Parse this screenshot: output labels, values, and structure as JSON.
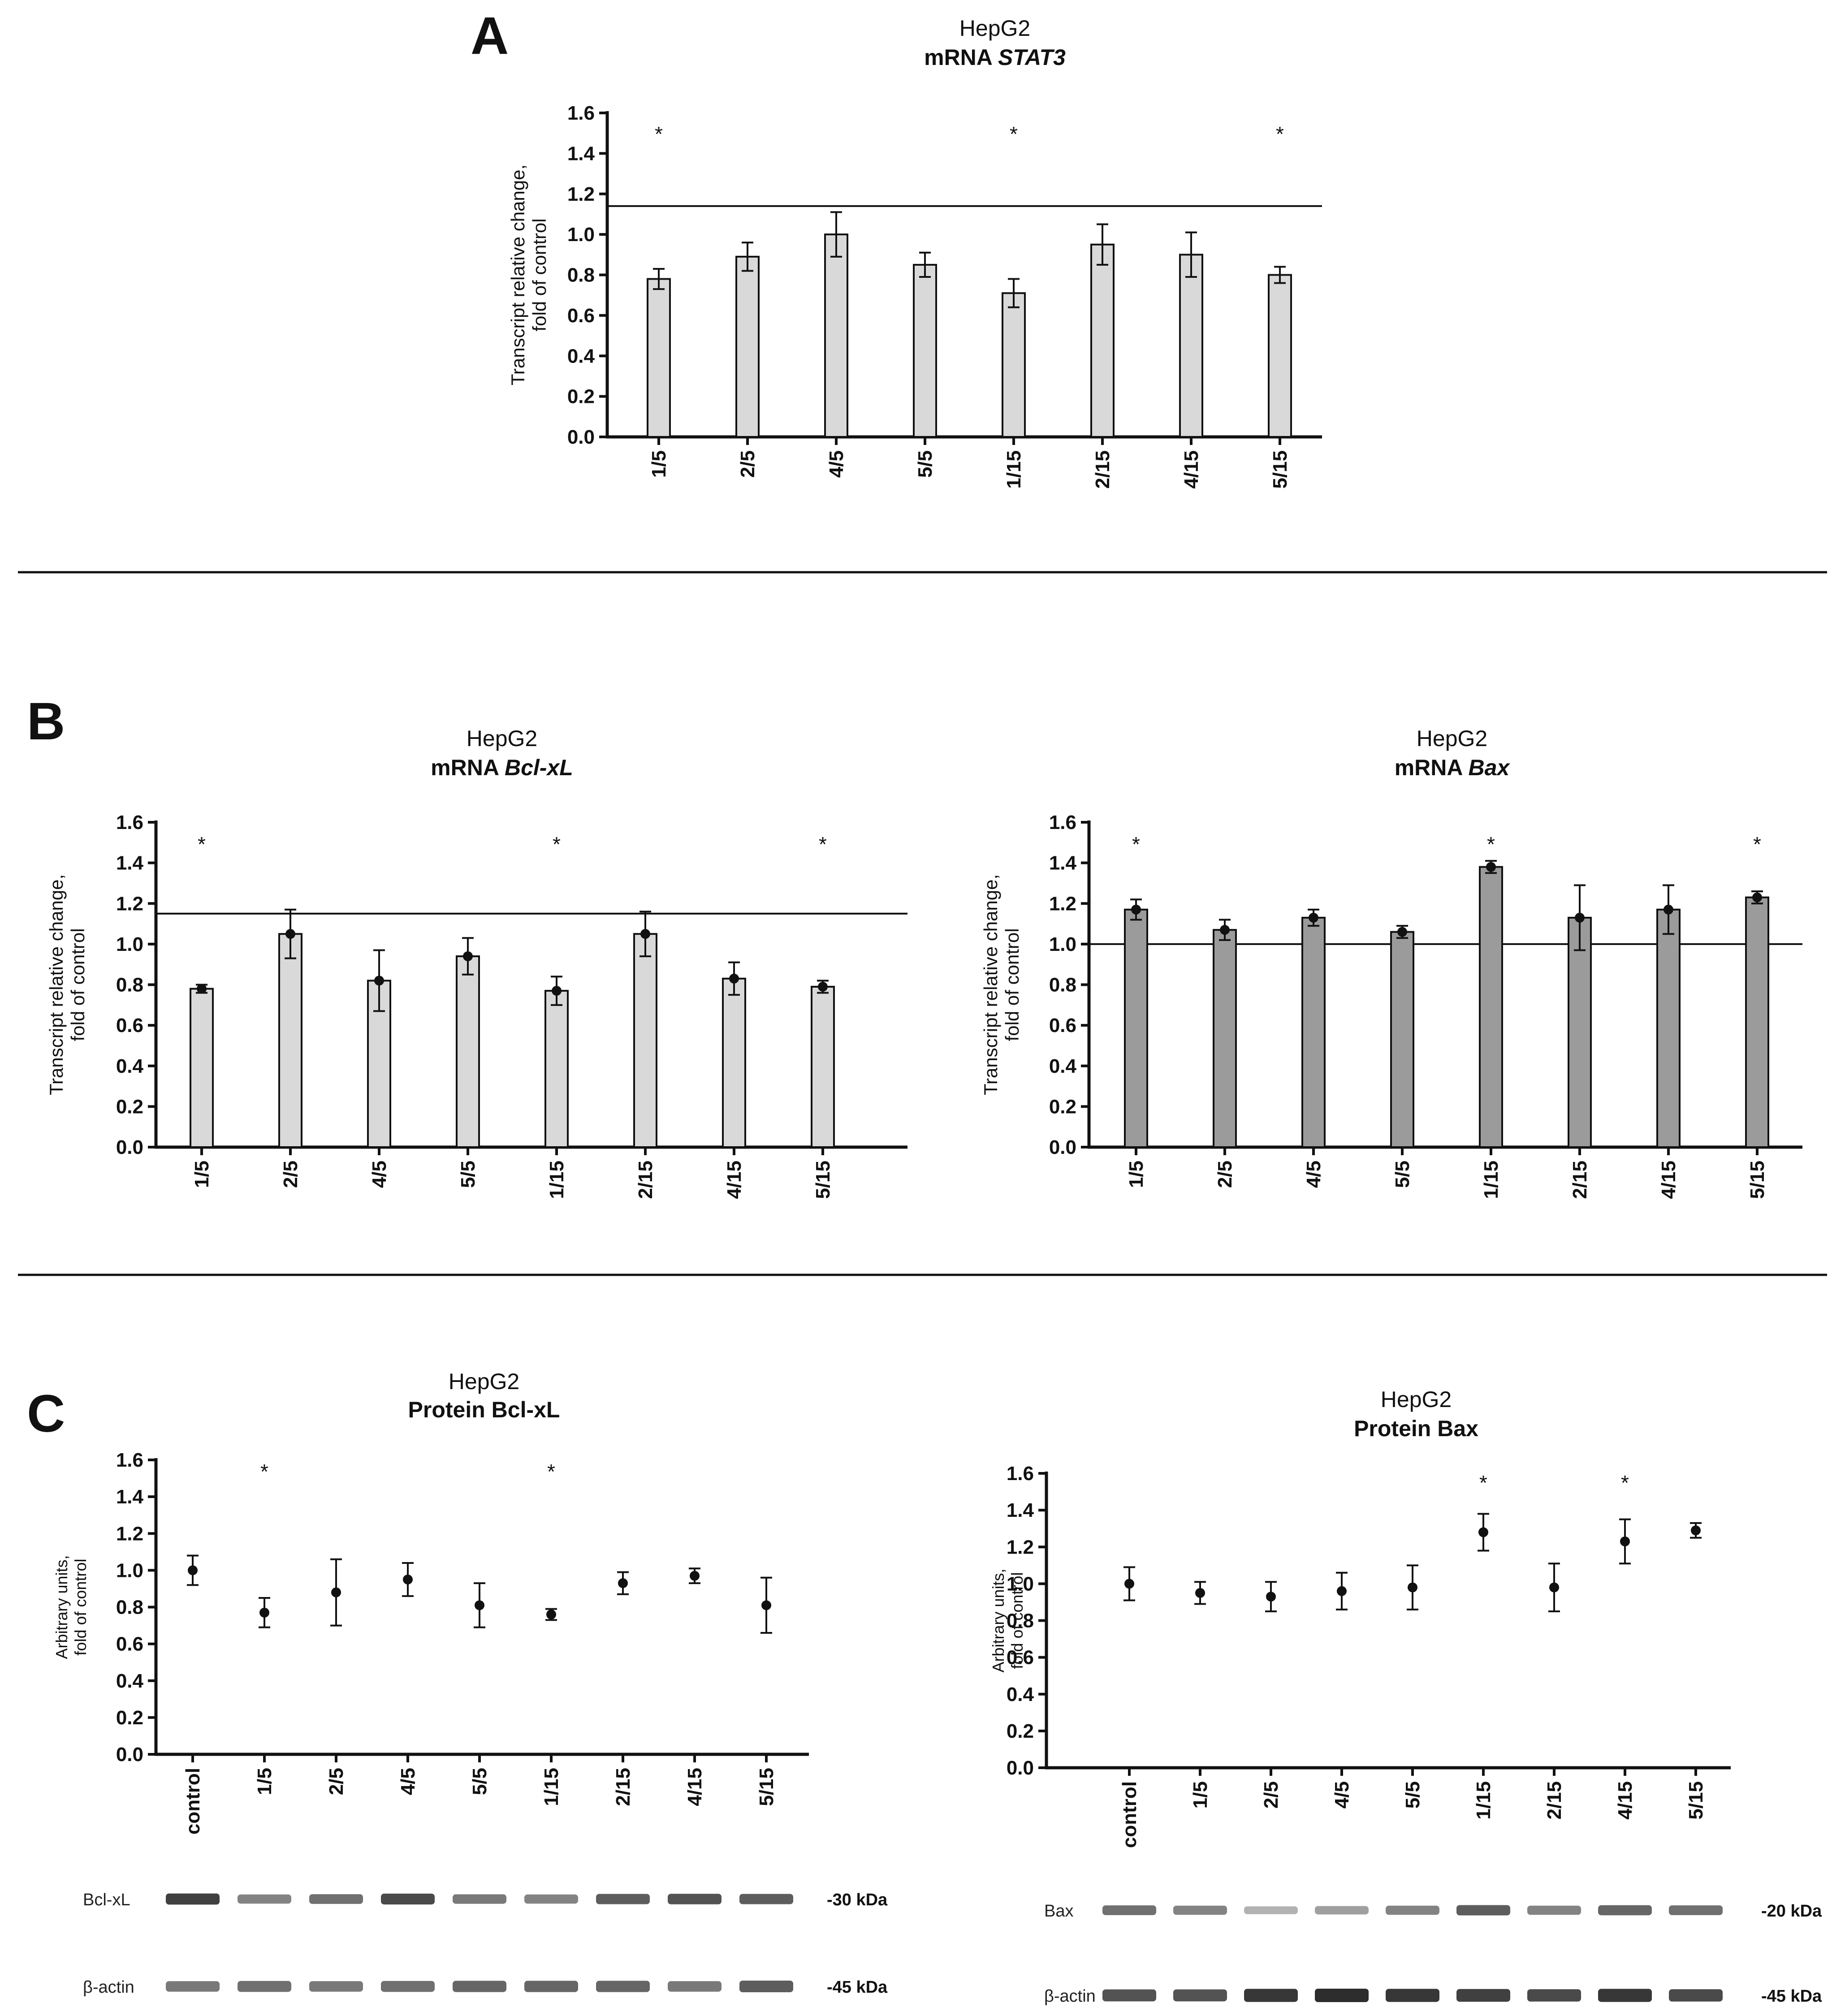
{
  "panels": {
    "A": "A",
    "B": "B",
    "C": "C"
  },
  "chart_data": [
    {
      "id": "stat3",
      "panel": "A",
      "type": "bar",
      "title": "HepG2",
      "title_prefix": "mRNA ",
      "title_gene": "STAT3",
      "ylabel": [
        "Transcript relative change,",
        "fold of control"
      ],
      "ylim": [
        0,
        1.6
      ],
      "yticks": [
        "0.0",
        "0.2",
        "0.4",
        "0.6",
        "0.8",
        "1.0",
        "1.2",
        "1.4",
        "1.6"
      ],
      "categories": [
        "1/5",
        "2/5",
        "4/5",
        "5/5",
        "1/15",
        "2/15",
        "4/15",
        "5/15"
      ],
      "values": [
        0.78,
        0.89,
        1.0,
        0.85,
        0.71,
        0.95,
        0.9,
        0.8
      ],
      "errors": [
        0.05,
        0.07,
        0.11,
        0.06,
        0.07,
        0.1,
        0.11,
        0.04
      ],
      "significant": [
        true,
        false,
        false,
        false,
        true,
        false,
        false,
        true
      ],
      "reference_line": 1.14,
      "bar_color": "#d9d9d9",
      "markers": false
    },
    {
      "id": "bclxl-mrna",
      "panel": "B",
      "type": "bar",
      "title": "HepG2",
      "title_prefix": "mRNA ",
      "title_gene": "Bcl-xL",
      "ylabel": [
        "Transcript relative change,",
        "fold of control"
      ],
      "ylim": [
        0,
        1.6
      ],
      "yticks": [
        "0.0",
        "0.2",
        "0.4",
        "0.6",
        "0.8",
        "1.0",
        "1.2",
        "1.4",
        "1.6"
      ],
      "categories": [
        "1/5",
        "2/5",
        "4/5",
        "5/5",
        "1/15",
        "2/15",
        "4/15",
        "5/15"
      ],
      "values": [
        0.78,
        1.05,
        0.82,
        0.94,
        0.77,
        1.05,
        0.83,
        0.79
      ],
      "errors": [
        0.02,
        0.12,
        0.15,
        0.09,
        0.07,
        0.11,
        0.08,
        0.03
      ],
      "significant": [
        true,
        false,
        false,
        false,
        true,
        false,
        false,
        true
      ],
      "reference_line": 1.15,
      "bar_color": "#d9d9d9",
      "markers": true
    },
    {
      "id": "bax-mrna",
      "panel": "B",
      "type": "bar",
      "title": "HepG2",
      "title_prefix": "mRNA ",
      "title_gene": "Bax",
      "ylabel": [
        "Transcript relative change,",
        "fold of control"
      ],
      "ylim": [
        0,
        1.6
      ],
      "yticks": [
        "0.0",
        "0.2",
        "0.4",
        "0.6",
        "0.8",
        "1.0",
        "1.2",
        "1.4",
        "1.6"
      ],
      "categories": [
        "1/5",
        "2/5",
        "4/5",
        "5/5",
        "1/15",
        "2/15",
        "4/15",
        "5/15"
      ],
      "values": [
        1.17,
        1.07,
        1.13,
        1.06,
        1.38,
        1.13,
        1.17,
        1.23
      ],
      "errors": [
        0.05,
        0.05,
        0.04,
        0.03,
        0.03,
        0.16,
        0.12,
        0.03
      ],
      "significant": [
        true,
        false,
        false,
        false,
        true,
        false,
        false,
        true
      ],
      "reference_line": 1.0,
      "bar_color": "#9b9b9b",
      "markers": true
    },
    {
      "id": "bclxl-protein",
      "panel": "C",
      "type": "scatter",
      "title": "HepG2",
      "title_prefix": "",
      "title_gene": "Protein Bcl-xL",
      "ylabel": [
        "Arbitrary units,",
        "fold of control"
      ],
      "ylim": [
        0,
        1.6
      ],
      "yticks": [
        "0.0",
        "0.2",
        "0.4",
        "0.6",
        "0.8",
        "1.0",
        "1.2",
        "1.4",
        "1.6"
      ],
      "categories": [
        "control",
        "1/5",
        "2/5",
        "4/5",
        "5/5",
        "1/15",
        "2/15",
        "4/15",
        "5/15"
      ],
      "values": [
        1.0,
        0.77,
        0.88,
        0.95,
        0.81,
        0.76,
        0.93,
        0.97,
        0.81
      ],
      "errors": [
        0.08,
        0.08,
        0.18,
        0.09,
        0.12,
        0.03,
        0.06,
        0.04,
        0.15
      ],
      "significant": [
        false,
        true,
        false,
        false,
        false,
        true,
        false,
        false,
        false
      ],
      "blot": {
        "target_label": "Bcl-xL",
        "target_kda": "-30 kDa",
        "actin_label": "β-actin",
        "actin_kda": "-45 kDa",
        "target_intensity": [
          0.9,
          0.55,
          0.65,
          0.85,
          0.6,
          0.55,
          0.75,
          0.8,
          0.75
        ],
        "actin_intensity": [
          0.6,
          0.65,
          0.6,
          0.65,
          0.7,
          0.7,
          0.7,
          0.6,
          0.75
        ]
      }
    },
    {
      "id": "bax-protein",
      "panel": "C",
      "type": "scatter",
      "title": "HepG2",
      "title_prefix": "",
      "title_gene": "Protein Bax",
      "ylabel": [
        "Arbitrary units,",
        "fold of control"
      ],
      "ylim": [
        0,
        1.6
      ],
      "yticks": [
        "0.0",
        "0.2",
        "0.4",
        "0.6",
        "0.8",
        "1.0",
        "1.2",
        "1.4",
        "1.6"
      ],
      "categories": [
        "control",
        "1/5",
        "2/5",
        "4/5",
        "5/5",
        "1/15",
        "2/15",
        "4/15",
        "5/15"
      ],
      "values": [
        1.0,
        0.95,
        0.93,
        0.96,
        0.98,
        1.28,
        0.98,
        1.23,
        1.29
      ],
      "errors": [
        0.09,
        0.06,
        0.08,
        0.1,
        0.12,
        0.1,
        0.13,
        0.12,
        0.04
      ],
      "significant": [
        false,
        false,
        false,
        false,
        false,
        true,
        false,
        true,
        false
      ],
      "blot": {
        "target_label": "Bax",
        "target_kda": "-20 kDa",
        "actin_label": "β-actin",
        "actin_kda": "-45 kDa",
        "target_intensity": [
          0.65,
          0.55,
          0.3,
          0.4,
          0.55,
          0.75,
          0.55,
          0.7,
          0.65
        ],
        "actin_intensity": [
          0.8,
          0.8,
          0.95,
          1.0,
          0.95,
          0.9,
          0.85,
          0.95,
          0.85
        ]
      }
    }
  ]
}
